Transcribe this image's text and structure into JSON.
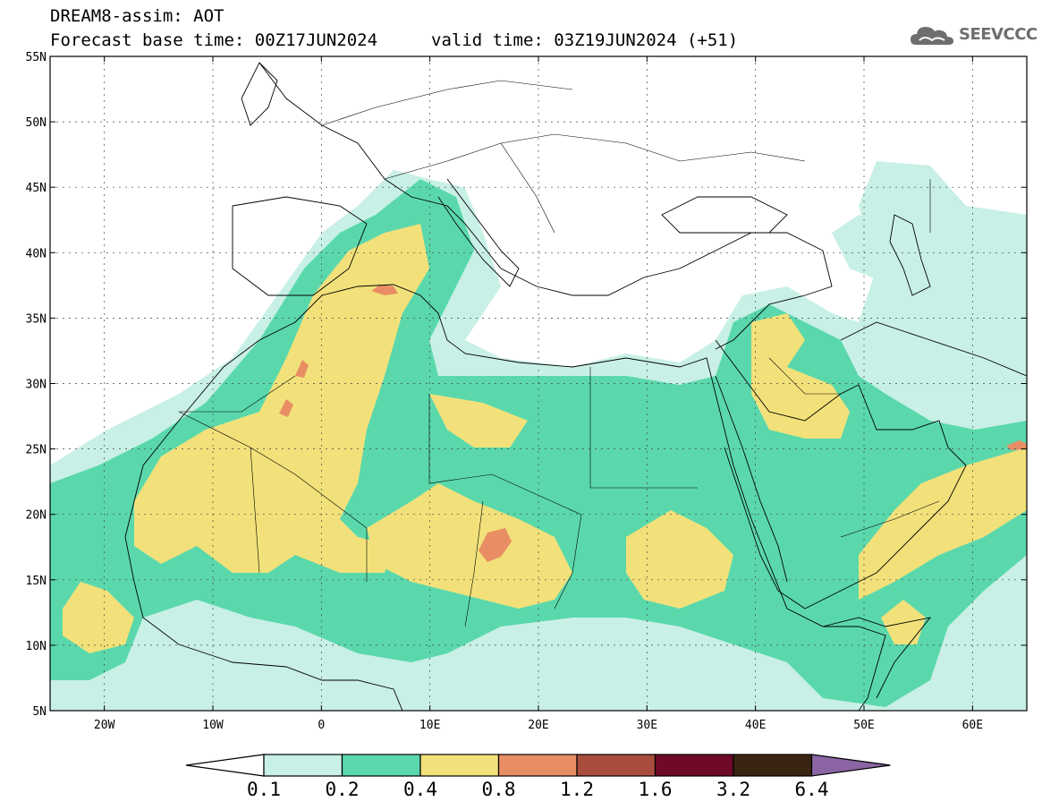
{
  "header": {
    "line1": "DREAM8-assim: AOT",
    "line2_left": "Forecast base time: 00Z17JUN2024",
    "line2_right": "valid time: 03Z19JUN2024 (+51)"
  },
  "logo": {
    "text": "SEEVCCC",
    "icon": "cloud-icon"
  },
  "map": {
    "lon_range": [
      -25,
      65
    ],
    "lat_range": [
      5,
      55
    ],
    "lat_ticks": [
      {
        "v": 55,
        "label": "55N"
      },
      {
        "v": 50,
        "label": "50N"
      },
      {
        "v": 45,
        "label": "45N"
      },
      {
        "v": 40,
        "label": "40N"
      },
      {
        "v": 35,
        "label": "35N"
      },
      {
        "v": 30,
        "label": "30N"
      },
      {
        "v": 25,
        "label": "25N"
      },
      {
        "v": 20,
        "label": "20N"
      },
      {
        "v": 15,
        "label": "15N"
      },
      {
        "v": 10,
        "label": "10N"
      },
      {
        "v": 5,
        "label": "5N"
      }
    ],
    "lon_ticks": [
      {
        "v": -20,
        "label": "20W"
      },
      {
        "v": -10,
        "label": "10W"
      },
      {
        "v": 0,
        "label": "0"
      },
      {
        "v": 10,
        "label": "10E"
      },
      {
        "v": 20,
        "label": "20E"
      },
      {
        "v": 30,
        "label": "30E"
      },
      {
        "v": 40,
        "label": "40E"
      },
      {
        "v": 50,
        "label": "50E"
      },
      {
        "v": 60,
        "label": "60E"
      }
    ]
  },
  "colorbar": {
    "labels": [
      "0.1",
      "0.2",
      "0.4",
      "0.8",
      "1.2",
      "1.6",
      "3.2",
      "6.4"
    ],
    "colors": [
      "#c8f0e6",
      "#5ad8ac",
      "#f2e17a",
      "#e98e64",
      "#a84d3e",
      "#6e0a28",
      "#3a2512",
      "#8c65a4"
    ]
  }
}
